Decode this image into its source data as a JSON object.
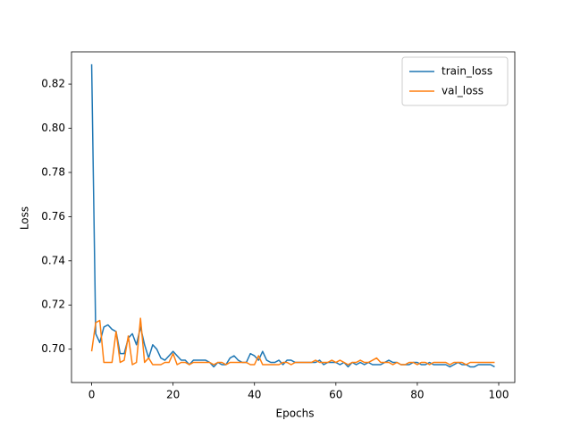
{
  "chart_data": {
    "type": "line",
    "xlabel": "Epochs",
    "ylabel": "Loss",
    "x": [
      0,
      1,
      2,
      3,
      4,
      5,
      6,
      7,
      8,
      9,
      10,
      11,
      12,
      13,
      14,
      15,
      16,
      17,
      18,
      19,
      20,
      21,
      22,
      23,
      24,
      25,
      26,
      27,
      28,
      29,
      30,
      31,
      32,
      33,
      34,
      35,
      36,
      37,
      38,
      39,
      40,
      41,
      42,
      43,
      44,
      45,
      46,
      47,
      48,
      49,
      50,
      51,
      52,
      53,
      54,
      55,
      56,
      57,
      58,
      59,
      60,
      61,
      62,
      63,
      64,
      65,
      66,
      67,
      68,
      69,
      70,
      71,
      72,
      73,
      74,
      75,
      76,
      77,
      78,
      79,
      80,
      81,
      82,
      83,
      84,
      85,
      86,
      87,
      88,
      89,
      90,
      91,
      92,
      93,
      94,
      95,
      96,
      97,
      98,
      99
    ],
    "series": [
      {
        "name": "train_loss",
        "color": "#1f77b4",
        "values": [
          0.829,
          0.707,
          0.703,
          0.71,
          0.711,
          0.709,
          0.708,
          0.698,
          0.698,
          0.705,
          0.707,
          0.702,
          0.71,
          0.702,
          0.696,
          0.702,
          0.7,
          0.696,
          0.695,
          0.697,
          0.699,
          0.697,
          0.695,
          0.695,
          0.693,
          0.695,
          0.695,
          0.695,
          0.695,
          0.694,
          0.692,
          0.694,
          0.693,
          0.693,
          0.696,
          0.697,
          0.695,
          0.694,
          0.694,
          0.698,
          0.697,
          0.695,
          0.699,
          0.695,
          0.694,
          0.694,
          0.695,
          0.693,
          0.695,
          0.695,
          0.694,
          0.694,
          0.694,
          0.694,
          0.694,
          0.694,
          0.695,
          0.693,
          0.694,
          0.694,
          0.694,
          0.693,
          0.694,
          0.692,
          0.694,
          0.693,
          0.694,
          0.693,
          0.694,
          0.693,
          0.693,
          0.693,
          0.694,
          0.695,
          0.694,
          0.694,
          0.693,
          0.693,
          0.693,
          0.694,
          0.694,
          0.693,
          0.693,
          0.694,
          0.693,
          0.693,
          0.693,
          0.693,
          0.692,
          0.693,
          0.694,
          0.693,
          0.693,
          0.692,
          0.692,
          0.693,
          0.693,
          0.693,
          0.693,
          0.692
        ]
      },
      {
        "name": "val_loss",
        "color": "#ff7f0e",
        "values": [
          0.699,
          0.712,
          0.713,
          0.694,
          0.694,
          0.694,
          0.708,
          0.694,
          0.695,
          0.706,
          0.693,
          0.694,
          0.714,
          0.694,
          0.696,
          0.693,
          0.693,
          0.693,
          0.694,
          0.694,
          0.698,
          0.693,
          0.694,
          0.694,
          0.693,
          0.694,
          0.694,
          0.694,
          0.694,
          0.694,
          0.693,
          0.694,
          0.694,
          0.693,
          0.694,
          0.694,
          0.694,
          0.694,
          0.694,
          0.693,
          0.693,
          0.697,
          0.693,
          0.693,
          0.693,
          0.693,
          0.693,
          0.694,
          0.694,
          0.693,
          0.694,
          0.694,
          0.694,
          0.694,
          0.694,
          0.695,
          0.694,
          0.694,
          0.694,
          0.695,
          0.694,
          0.695,
          0.694,
          0.693,
          0.694,
          0.694,
          0.695,
          0.694,
          0.694,
          0.695,
          0.696,
          0.694,
          0.694,
          0.694,
          0.693,
          0.694,
          0.693,
          0.693,
          0.694,
          0.694,
          0.693,
          0.694,
          0.694,
          0.693,
          0.694,
          0.694,
          0.694,
          0.694,
          0.693,
          0.694,
          0.694,
          0.694,
          0.693,
          0.694,
          0.694,
          0.694,
          0.694,
          0.694,
          0.694,
          0.694
        ]
      }
    ],
    "xlim": [
      -4.95,
      103.95
    ],
    "xticks": [
      0,
      20,
      40,
      60,
      80,
      100
    ],
    "ylim": [
      0.6849,
      0.8346
    ],
    "yticks": [
      {
        "value": 0.7,
        "label": "0.70"
      },
      0.72,
      0.74,
      0.76,
      0.78,
      {
        "value": 0.8,
        "label": "0.80"
      },
      0.82
    ],
    "legend": "upper right"
  }
}
